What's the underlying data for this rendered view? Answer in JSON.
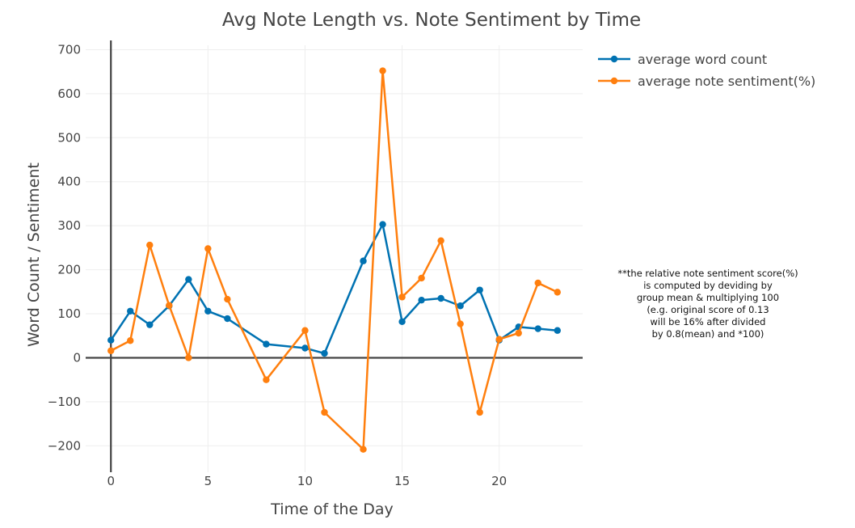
{
  "chart_data": {
    "type": "line",
    "title": "Avg Note Length vs. Note Sentiment by Time",
    "xlabel": "Time of the Day",
    "ylabel": "Word Count / Sentiment",
    "xlim": [
      -1.3,
      24.3
    ],
    "ylim": [
      -260,
      710
    ],
    "xticks": [
      0,
      5,
      10,
      15,
      20
    ],
    "xtick_labels": [
      "0",
      "5",
      "10",
      "15",
      "20"
    ],
    "yticks": [
      -200,
      -100,
      0,
      100,
      200,
      300,
      400,
      500,
      600,
      700
    ],
    "ytick_labels": [
      "−200",
      "−100",
      "0",
      "100",
      "200",
      "300",
      "400",
      "500",
      "600",
      "700"
    ],
    "grid": true,
    "legend_position": "top-right",
    "series": [
      {
        "name": "average word count",
        "color": "#0072b2",
        "x": [
          0,
          1,
          2,
          3,
          4,
          5,
          6,
          8,
          10,
          11,
          13,
          14,
          15,
          16,
          17,
          18,
          19,
          20,
          21,
          22,
          23
        ],
        "y": [
          40,
          106,
          75,
          118,
          178,
          106,
          89,
          31,
          22,
          10,
          220,
          303,
          82,
          131,
          135,
          118,
          154,
          40,
          70,
          66,
          62
        ]
      },
      {
        "name": "average note sentiment(%)",
        "color": "#ff7f0e",
        "x": [
          0,
          1,
          2,
          3,
          4,
          5,
          6,
          8,
          10,
          11,
          13,
          14,
          15,
          16,
          17,
          18,
          19,
          20,
          21,
          22,
          23
        ],
        "y": [
          16,
          39,
          256,
          119,
          0,
          248,
          133,
          -50,
          62,
          -124,
          -208,
          652,
          138,
          181,
          266,
          77,
          -124,
          42,
          56,
          170,
          149
        ]
      }
    ],
    "annotation": [
      "**the relative note sentiment score(%)",
      "is computed by deviding by",
      "group mean & multiplying 100",
      "(e.g. original score of 0.13",
      "will be 16% after divided",
      "by 0.8(mean) and *100)"
    ]
  }
}
